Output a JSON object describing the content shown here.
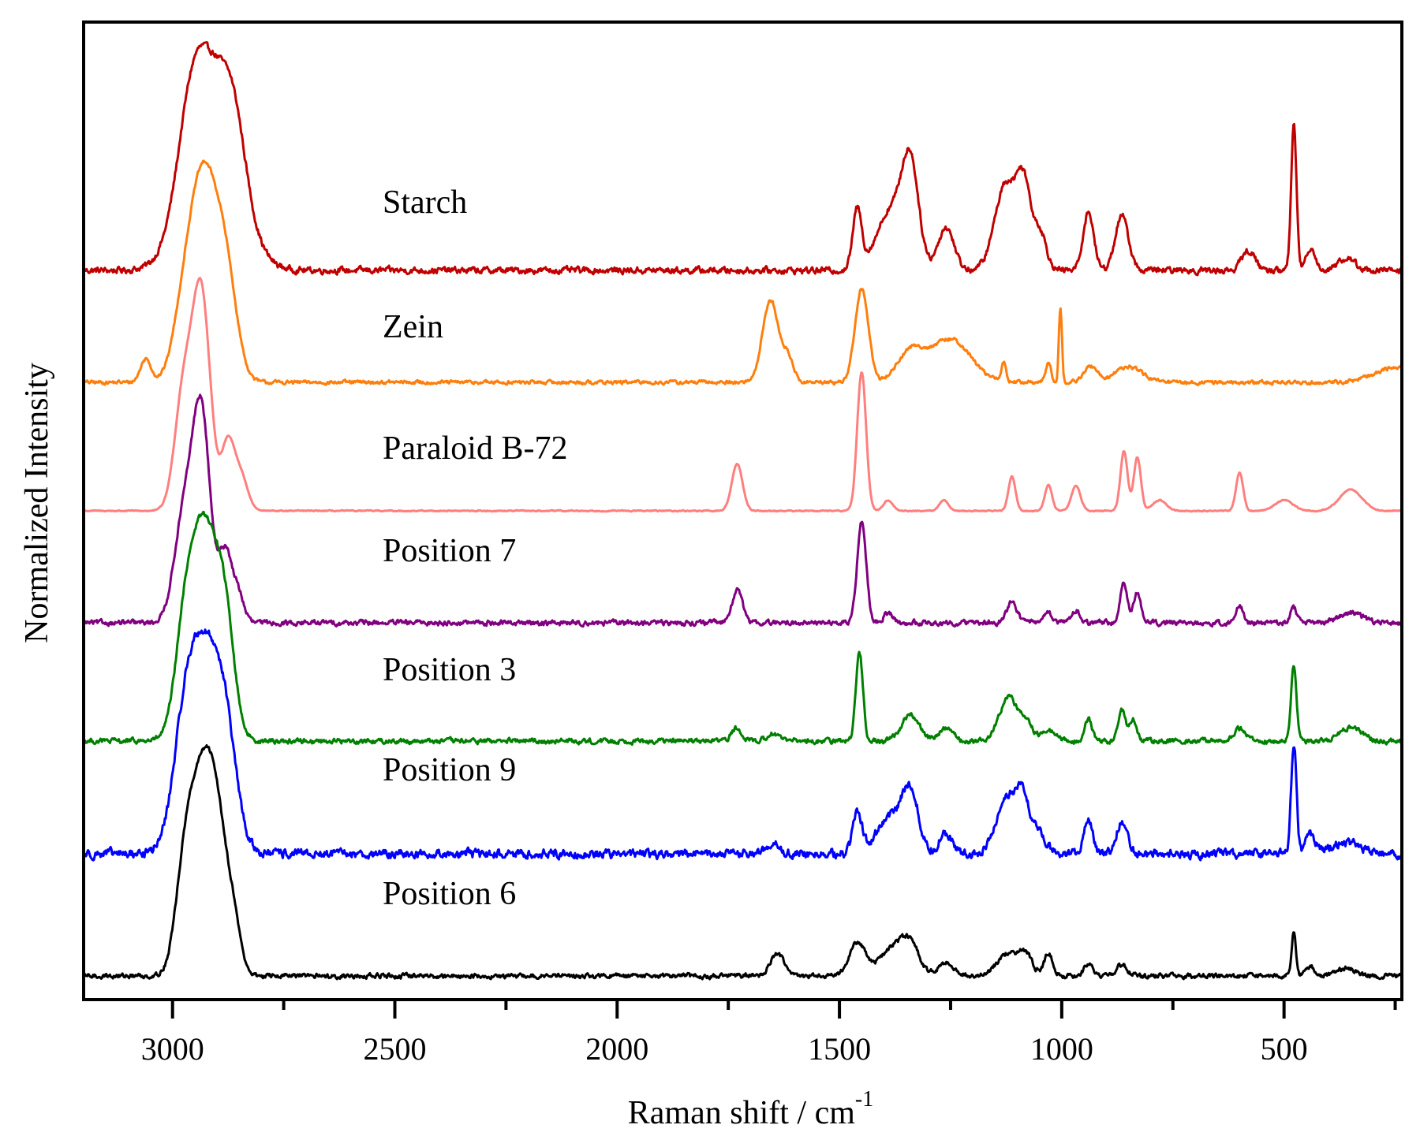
{
  "chart_data": {
    "type": "line",
    "title": "",
    "xlabel": "Raman shift / cm",
    "xlabel_superscript": "-1",
    "ylabel": "Normalized Intensity",
    "xlim": [
      3200,
      235
    ],
    "x_reversed": true,
    "x_major_ticks": [
      3000,
      2500,
      2000,
      1500,
      1000,
      500
    ],
    "x_tick_labels": [
      "3000",
      "2500",
      "2000",
      "1500",
      "1000",
      "500"
    ],
    "x_minor_ticks": [
      2750,
      2250,
      1750,
      1250,
      750,
      250
    ],
    "y_ticks_shown": false,
    "grid": false,
    "legend": "inline-labels",
    "stacked_offset_spectra": true,
    "series": [
      {
        "name": "Starch",
        "color": "#c00000",
        "offset": 6.0,
        "noise": 0.025,
        "peaks": [
          [
            2910,
            1.0,
            55
          ],
          [
            2960,
            0.35,
            30
          ],
          [
            2860,
            0.25,
            25
          ],
          [
            1460,
            0.3,
            10
          ],
          [
            1380,
            0.32,
            35
          ],
          [
            1340,
            0.45,
            18
          ],
          [
            1260,
            0.22,
            18
          ],
          [
            1125,
            0.45,
            25
          ],
          [
            1085,
            0.38,
            15
          ],
          [
            1050,
            0.2,
            15
          ],
          [
            940,
            0.3,
            12
          ],
          [
            865,
            0.28,
            15
          ],
          [
            580,
            0.1,
            15
          ],
          [
            478,
            0.75,
            6
          ],
          [
            440,
            0.12,
            10
          ],
          [
            360,
            0.06,
            20
          ]
        ]
      },
      {
        "name": "Zein",
        "color": "#ff7f0e",
        "offset": 5.0,
        "noise": 0.015,
        "peaks": [
          [
            2930,
            1.0,
            30
          ],
          [
            2880,
            0.5,
            25
          ],
          [
            2975,
            0.3,
            25
          ],
          [
            3060,
            0.12,
            12
          ],
          [
            1655,
            0.42,
            18
          ],
          [
            1615,
            0.12,
            12
          ],
          [
            1450,
            0.48,
            15
          ],
          [
            1340,
            0.15,
            30
          ],
          [
            1250,
            0.22,
            45
          ],
          [
            1130,
            0.1,
            5
          ],
          [
            1003,
            0.38,
            3.5
          ],
          [
            1030,
            0.1,
            6
          ],
          [
            850,
            0.08,
            30
          ],
          [
            935,
            0.08,
            15
          ],
          [
            240,
            0.08,
            50
          ]
        ]
      },
      {
        "name": "Paraloid B-72",
        "color": "#ff7f7f",
        "offset": 4.0,
        "noise": 0.004,
        "peaks": [
          [
            2935,
            1.0,
            20
          ],
          [
            2975,
            0.55,
            20
          ],
          [
            2875,
            0.32,
            15
          ],
          [
            2845,
            0.15,
            15
          ],
          [
            1730,
            0.22,
            12
          ],
          [
            1450,
            0.65,
            10
          ],
          [
            1390,
            0.05,
            10
          ],
          [
            1265,
            0.05,
            10
          ],
          [
            1112,
            0.16,
            8
          ],
          [
            1030,
            0.12,
            8
          ],
          [
            968,
            0.12,
            10
          ],
          [
            860,
            0.28,
            8
          ],
          [
            830,
            0.25,
            8
          ],
          [
            780,
            0.05,
            15
          ],
          [
            600,
            0.18,
            8
          ],
          [
            500,
            0.05,
            20
          ],
          [
            350,
            0.1,
            25
          ]
        ]
      },
      {
        "name": "Position 7",
        "color": "#800080",
        "offset": 3.0,
        "noise": 0.02,
        "peaks": [
          [
            2935,
            1.0,
            20
          ],
          [
            2975,
            0.5,
            22
          ],
          [
            2880,
            0.35,
            15
          ],
          [
            2850,
            0.12,
            12
          ],
          [
            1730,
            0.16,
            12
          ],
          [
            1450,
            0.5,
            10
          ],
          [
            1390,
            0.05,
            10
          ],
          [
            1112,
            0.1,
            12
          ],
          [
            1030,
            0.06,
            8
          ],
          [
            968,
            0.06,
            10
          ],
          [
            860,
            0.2,
            8
          ],
          [
            830,
            0.15,
            8
          ],
          [
            600,
            0.08,
            8
          ],
          [
            478,
            0.07,
            8
          ],
          [
            350,
            0.05,
            25
          ]
        ]
      },
      {
        "name": "Position 3",
        "color": "#008000",
        "offset": 2.0,
        "noise": 0.02,
        "peaks": [
          [
            2930,
            1.0,
            35
          ],
          [
            2880,
            0.35,
            20
          ],
          [
            2975,
            0.25,
            20
          ],
          [
            1730,
            0.06,
            12
          ],
          [
            1650,
            0.04,
            12
          ],
          [
            1455,
            0.4,
            8
          ],
          [
            1340,
            0.12,
            20
          ],
          [
            1260,
            0.06,
            15
          ],
          [
            1120,
            0.2,
            20
          ],
          [
            1080,
            0.08,
            15
          ],
          [
            1030,
            0.05,
            15
          ],
          [
            940,
            0.1,
            8
          ],
          [
            865,
            0.14,
            8
          ],
          [
            840,
            0.1,
            8
          ],
          [
            600,
            0.06,
            12
          ],
          [
            478,
            0.35,
            6
          ],
          [
            350,
            0.06,
            25
          ]
        ]
      },
      {
        "name": "Position 9",
        "color": "#0000ff",
        "offset": 1.0,
        "noise": 0.035,
        "peaks": [
          [
            2930,
            1.0,
            40
          ],
          [
            2880,
            0.35,
            25
          ],
          [
            2975,
            0.3,
            25
          ],
          [
            1460,
            0.2,
            10
          ],
          [
            1380,
            0.18,
            35
          ],
          [
            1340,
            0.25,
            18
          ],
          [
            1260,
            0.1,
            15
          ],
          [
            1120,
            0.28,
            25
          ],
          [
            1085,
            0.2,
            15
          ],
          [
            1050,
            0.1,
            15
          ],
          [
            940,
            0.18,
            10
          ],
          [
            865,
            0.16,
            12
          ],
          [
            1650,
            0.05,
            15
          ],
          [
            478,
            0.55,
            6
          ],
          [
            440,
            0.1,
            10
          ],
          [
            360,
            0.06,
            30
          ]
        ]
      },
      {
        "name": "Position 6",
        "color": "#000000",
        "offset": 0.0,
        "noise": 0.018,
        "peaks": [
          [
            2935,
            1.0,
            30
          ],
          [
            2895,
            0.55,
            25
          ],
          [
            2975,
            0.35,
            20
          ],
          [
            2860,
            0.15,
            15
          ],
          [
            1640,
            0.12,
            15
          ],
          [
            1460,
            0.18,
            18
          ],
          [
            1380,
            0.15,
            30
          ],
          [
            1340,
            0.14,
            20
          ],
          [
            1260,
            0.07,
            18
          ],
          [
            1120,
            0.12,
            25
          ],
          [
            1080,
            0.1,
            15
          ],
          [
            1030,
            0.12,
            10
          ],
          [
            940,
            0.06,
            10
          ],
          [
            865,
            0.06,
            12
          ],
          [
            478,
            0.24,
            5
          ],
          [
            440,
            0.05,
            10
          ],
          [
            360,
            0.04,
            20
          ]
        ]
      }
    ]
  }
}
